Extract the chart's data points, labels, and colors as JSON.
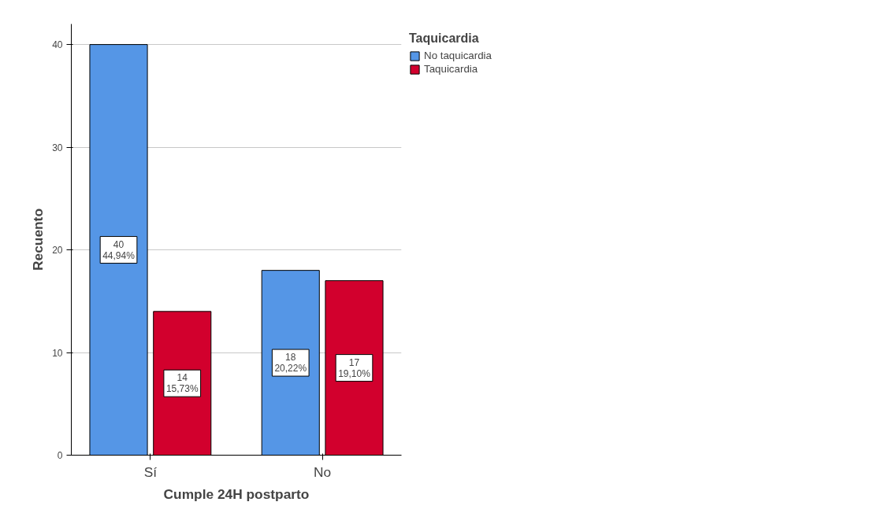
{
  "chart_data": {
    "type": "bar",
    "xlabel": "Cumple 24H postparto",
    "ylabel": "Recuento",
    "legend_title": "Taquicardia",
    "categories": [
      "Sí",
      "No"
    ],
    "series": [
      {
        "name": "No taquicardia",
        "color": "#5596e6",
        "values": [
          40,
          18
        ],
        "value_labels": [
          "40\n44,94%",
          "18\n20,22%"
        ]
      },
      {
        "name": "Taquicardia",
        "color": "#d2002d",
        "values": [
          14,
          17
        ],
        "value_labels": [
          "14\n15,73%",
          "17\n19,10%"
        ]
      }
    ],
    "ylim": [
      0,
      42
    ],
    "yticks": [
      0,
      10,
      20,
      30,
      40
    ],
    "grid": "y",
    "legend": "top right"
  }
}
